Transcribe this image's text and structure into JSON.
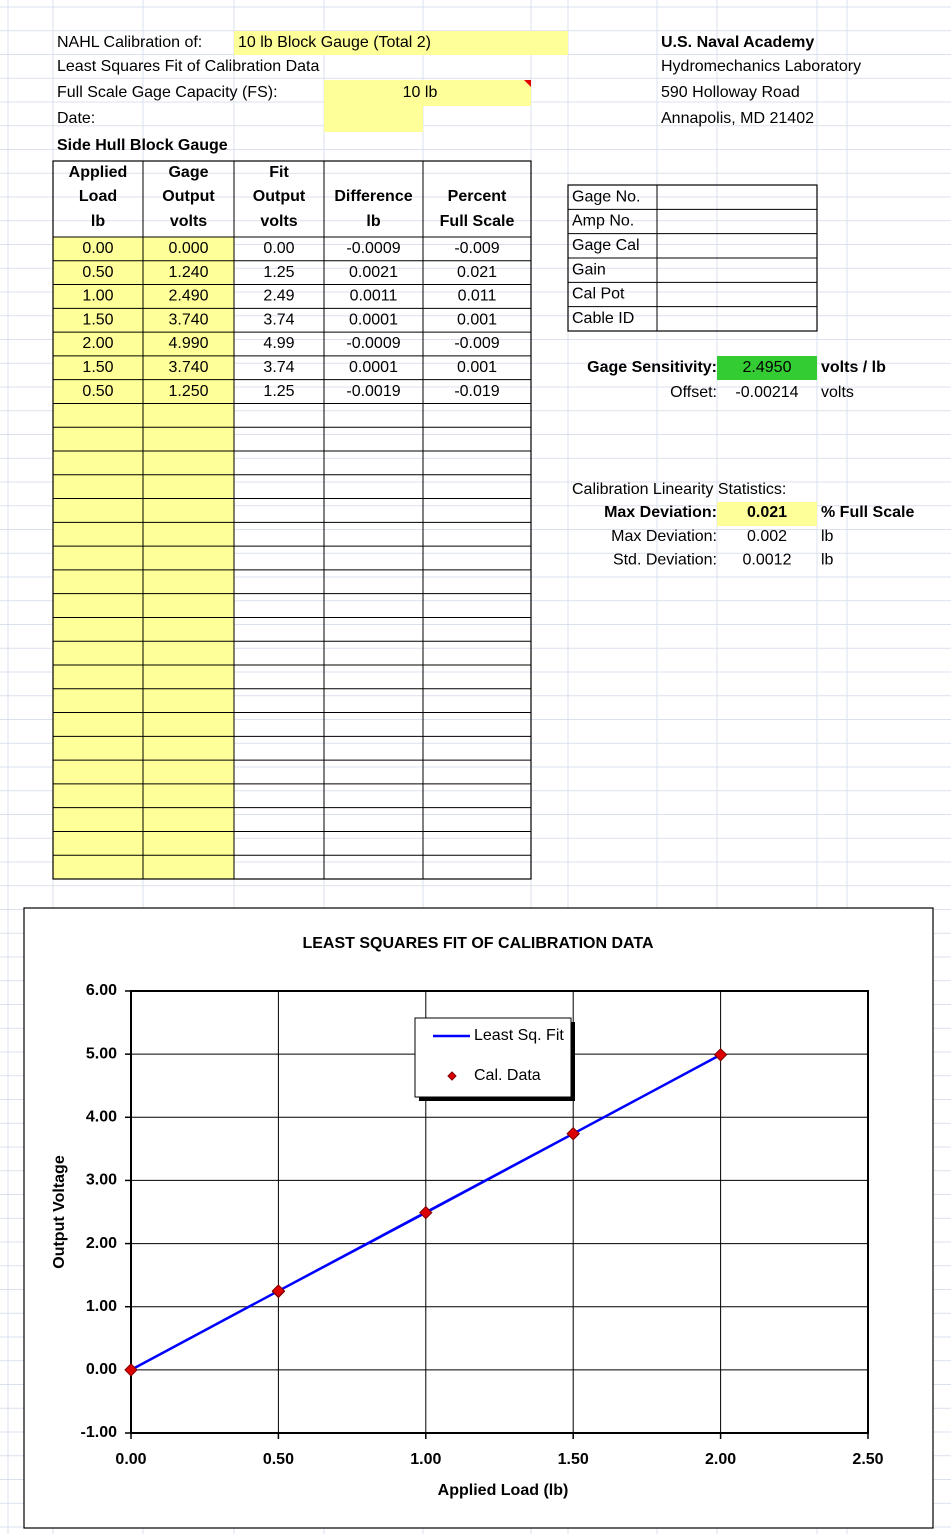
{
  "header": {
    "calibration_label": "NAHL Calibration of:",
    "calibration_value": "10 lb Block Gauge (Total 2)",
    "fit_title": "Least Squares Fit of Calibration Data",
    "capacity_label": "Full Scale Gage Capacity (FS):",
    "capacity_value": "10 lb",
    "date_label": "Date:",
    "gauge_name": "Side Hull Block Gauge"
  },
  "institution": [
    "U.S. Naval Academy",
    "Hydromechanics Laboratory",
    "590 Holloway Road",
    "Annapolis, MD  21402"
  ],
  "table": {
    "headers": [
      [
        "Applied",
        "Load",
        "lb"
      ],
      [
        "Gage",
        "Output",
        "volts"
      ],
      [
        "Fit",
        "Output",
        "volts"
      ],
      [
        "Difference",
        "lb"
      ],
      [
        "Percent",
        "Full Scale"
      ]
    ],
    "rows": [
      [
        "0.00",
        "0.000",
        "0.00",
        "-0.0009",
        "-0.009"
      ],
      [
        "0.50",
        "1.240",
        "1.25",
        "0.0021",
        "0.021"
      ],
      [
        "1.00",
        "2.490",
        "2.49",
        "0.0011",
        "0.011"
      ],
      [
        "1.50",
        "3.740",
        "3.74",
        "0.0001",
        "0.001"
      ],
      [
        "2.00",
        "4.990",
        "4.99",
        "-0.0009",
        "-0.009"
      ],
      [
        "1.50",
        "3.740",
        "3.74",
        "0.0001",
        "0.001"
      ],
      [
        "0.50",
        "1.250",
        "1.25",
        "-0.0019",
        "-0.019"
      ]
    ]
  },
  "gage_info": [
    "Gage No.",
    "Amp No.",
    "Gage Cal",
    "Gain",
    "Cal Pot",
    "Cable ID"
  ],
  "sensitivity": {
    "label": "Gage Sensitivity:",
    "value": "2.4950",
    "unit": "volts / lb",
    "offset_label": "Offset:",
    "offset_value": "-0.00214",
    "offset_unit": "volts"
  },
  "statistics": {
    "title": "Calibration Linearity Statistics:",
    "rows": [
      [
        "Max Deviation:",
        "0.021",
        "% Full Scale"
      ],
      [
        "Max Deviation:",
        "0.002",
        "lb"
      ],
      [
        "Std. Deviation:",
        "0.0012",
        "lb"
      ]
    ]
  },
  "chart_data": {
    "type": "line",
    "title": "LEAST SQUARES FIT OF CALIBRATION DATA",
    "x_label": "Applied Load (lb)",
    "y_label": "Output Voltage",
    "x": [
      0,
      0.5,
      1,
      1.5,
      2,
      1.5,
      0.5
    ],
    "series": [
      {
        "name": "Least Sq. Fit",
        "color": "#0000ff",
        "mode": "line",
        "values": [
          0,
          1.25,
          2.49,
          3.74,
          4.99,
          3.74,
          1.25
        ]
      },
      {
        "name": "Cal. Data",
        "color": "#dd0000",
        "mode": "markers",
        "values": [
          0,
          1.24,
          2.49,
          3.74,
          4.99,
          3.74,
          1.25
        ]
      }
    ],
    "xlim": [
      0,
      2.5
    ],
    "xticks": [
      {
        "value": 0,
        "label": "0.00"
      },
      {
        "value": 0.5,
        "label": "0.50"
      },
      {
        "value": 1,
        "label": "1.00"
      },
      {
        "value": 1.5,
        "label": "1.50"
      },
      {
        "value": 2,
        "label": "2.00"
      },
      {
        "value": 2.5,
        "label": "2.50"
      }
    ],
    "ylim": [
      -1,
      6
    ],
    "yticks": [
      {
        "value": -1,
        "label": "-1.00"
      },
      {
        "value": 0,
        "label": "0.00"
      },
      {
        "value": 1,
        "label": "1.00"
      },
      {
        "value": 2,
        "label": "2.00"
      },
      {
        "value": 3,
        "label": "3.00"
      },
      {
        "value": 4,
        "label": "4.00"
      },
      {
        "value": 5,
        "label": "5.00"
      },
      {
        "value": 6,
        "label": "6.00"
      }
    ],
    "grid": true,
    "legend": "top-center"
  }
}
